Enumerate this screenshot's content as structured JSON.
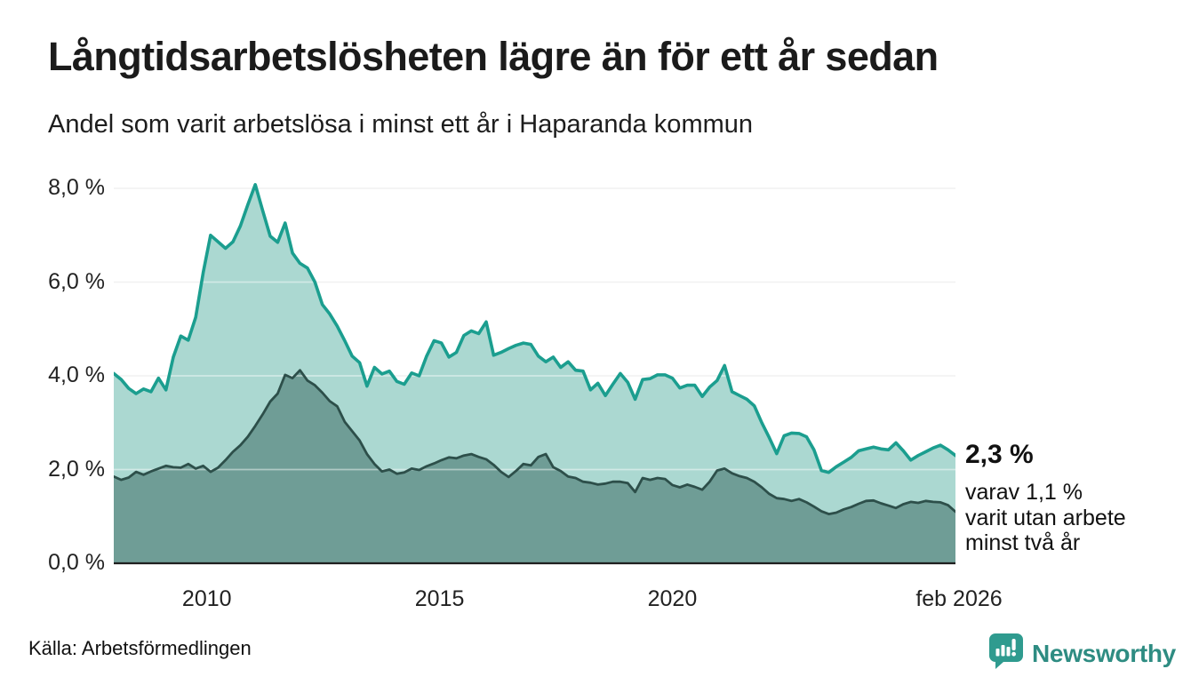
{
  "header": {
    "title": "Långtidsarbetslösheten lägre än för ett år sedan",
    "subtitle": "Andel som varit arbetslösa i minst ett år i Haparanda kommun"
  },
  "annotation": {
    "headline": "2,3 %",
    "detail_lines": [
      "varav 1,1 %",
      "varit utan arbete",
      "minst två år"
    ]
  },
  "footer": {
    "source": "Källa: Arbetsförmedlingen",
    "brand": "Newsworthy"
  },
  "colors": {
    "line_total": "#1b9e8f",
    "fill_total": "#abd8d1",
    "line_two_years": "#2d4f4a",
    "fill_two_years": "#6f9d96",
    "grid": "#e8e8e8",
    "grid_overlay": "rgba(255,255,255,0.45)",
    "axis": "#1f1f1f",
    "brand_teal": "#2e8c82",
    "logo_fill": "#2f9b8f"
  },
  "chart_data": {
    "type": "area",
    "title": "Långtidsarbetslösheten lägre än för ett år sedan",
    "subtitle": "Andel som varit arbetslösa i minst ett år i Haparanda kommun",
    "unit": "%",
    "x_range": [
      2008.0,
      2026.083
    ],
    "ylim": [
      0,
      8.34
    ],
    "grid": "horizontal",
    "legend_position": "none",
    "x_ticks": [
      {
        "label": "2010",
        "year": 2010
      },
      {
        "label": "2015",
        "year": 2015
      },
      {
        "label": "2020",
        "year": 2020
      },
      {
        "label": "feb 2026",
        "year": 2026.083
      }
    ],
    "y_ticks": [
      {
        "value": 0,
        "label": "0,0 %"
      },
      {
        "value": 2,
        "label": "2,0 %"
      },
      {
        "value": 4,
        "label": "4,0 %"
      },
      {
        "value": 6,
        "label": "6,0 %"
      },
      {
        "value": 8,
        "label": "8,0 %"
      }
    ],
    "series": [
      {
        "name": "Arbetslösa minst ett år",
        "end_label": "2,3 %",
        "end_value": 2.3,
        "values": [
          4.05,
          3.92,
          3.73,
          3.62,
          3.72,
          3.66,
          3.95,
          3.7,
          4.4,
          4.85,
          4.76,
          5.25,
          6.2,
          7.0,
          6.86,
          6.72,
          6.86,
          7.2,
          7.65,
          8.08,
          7.52,
          6.98,
          6.85,
          7.26,
          6.62,
          6.4,
          6.3,
          6.0,
          5.52,
          5.32,
          5.06,
          4.75,
          4.42,
          4.28,
          3.78,
          4.18,
          4.04,
          4.1,
          3.88,
          3.82,
          4.06,
          4.0,
          4.42,
          4.75,
          4.7,
          4.4,
          4.5,
          4.86,
          4.96,
          4.9,
          5.15,
          4.44,
          4.5,
          4.58,
          4.65,
          4.7,
          4.67,
          4.42,
          4.3,
          4.4,
          4.18,
          4.3,
          4.12,
          4.1,
          3.7,
          3.84,
          3.58,
          3.82,
          4.05,
          3.86,
          3.5,
          3.92,
          3.94,
          4.02,
          4.02,
          3.95,
          3.74,
          3.8,
          3.8,
          3.56,
          3.76,
          3.9,
          4.22,
          3.66,
          3.58,
          3.5,
          3.36,
          3.0,
          2.68,
          2.34,
          2.72,
          2.78,
          2.77,
          2.7,
          2.42,
          1.98,
          1.94,
          2.06,
          2.16,
          2.26,
          2.4,
          2.44,
          2.48,
          2.44,
          2.42,
          2.57,
          2.4,
          2.2,
          2.3,
          2.38,
          2.46,
          2.52,
          2.42,
          2.3
        ]
      },
      {
        "name": "Utan arbete minst två år",
        "end_label": "1,1 %",
        "end_value": 1.1,
        "values": [
          1.85,
          1.78,
          1.83,
          1.95,
          1.89,
          1.96,
          2.02,
          2.08,
          2.05,
          2.04,
          2.12,
          2.02,
          2.08,
          1.95,
          2.04,
          2.2,
          2.38,
          2.52,
          2.7,
          2.93,
          3.18,
          3.45,
          3.62,
          4.02,
          3.95,
          4.12,
          3.9,
          3.8,
          3.64,
          3.46,
          3.35,
          3.02,
          2.82,
          2.62,
          2.33,
          2.12,
          1.96,
          2.0,
          1.91,
          1.94,
          2.02,
          1.99,
          2.07,
          2.13,
          2.2,
          2.26,
          2.24,
          2.3,
          2.33,
          2.27,
          2.22,
          2.1,
          1.95,
          1.84,
          1.97,
          2.12,
          2.09,
          2.27,
          2.33,
          2.05,
          1.97,
          1.85,
          1.82,
          1.74,
          1.72,
          1.68,
          1.7,
          1.74,
          1.74,
          1.71,
          1.52,
          1.82,
          1.78,
          1.82,
          1.8,
          1.67,
          1.62,
          1.68,
          1.63,
          1.57,
          1.74,
          1.98,
          2.02,
          1.92,
          1.86,
          1.82,
          1.74,
          1.62,
          1.48,
          1.39,
          1.37,
          1.33,
          1.37,
          1.3,
          1.21,
          1.11,
          1.05,
          1.08,
          1.15,
          1.2,
          1.27,
          1.33,
          1.34,
          1.28,
          1.23,
          1.18,
          1.26,
          1.31,
          1.29,
          1.33,
          1.31,
          1.3,
          1.24,
          1.1
        ]
      }
    ]
  }
}
